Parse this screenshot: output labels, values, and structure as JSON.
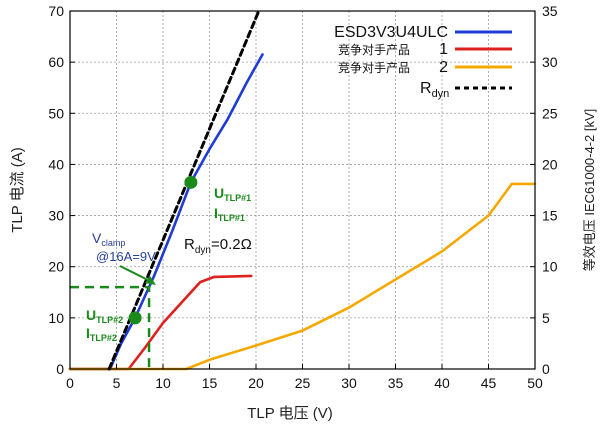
{
  "chart_data": {
    "type": "line",
    "xlabel": "TLP 电压 (V)",
    "ylabel_left": "TLP 电流 (A)",
    "ylabel_right": "等效电压 IEC61000-4-2 [kV]",
    "xlim": [
      0,
      50
    ],
    "ylim_left": [
      0,
      70
    ],
    "ylim_right": [
      0,
      35
    ],
    "x_ticks": [
      "0",
      "5",
      "10",
      "15",
      "20",
      "25",
      "30",
      "35",
      "40",
      "45",
      "50"
    ],
    "y_ticks_left": [
      "0",
      "10",
      "20",
      "30",
      "40",
      "50",
      "60",
      "70"
    ],
    "y_ticks_right": [
      "0",
      "5",
      "10",
      "15",
      "20",
      "25",
      "30",
      "35"
    ],
    "grid": true,
    "legend_position": "top-right",
    "series": [
      {
        "name": "ESD3V3U4ULC",
        "color": "#1f3bd6",
        "style": "solid",
        "points": [
          [
            0,
            0
          ],
          [
            4.3,
            0
          ],
          [
            5.5,
            5
          ],
          [
            7,
            10
          ],
          [
            9,
            18
          ],
          [
            11,
            27
          ],
          [
            13,
            36.5
          ],
          [
            15,
            43
          ],
          [
            17,
            49
          ],
          [
            19,
            56
          ],
          [
            20.7,
            61.5
          ]
        ]
      },
      {
        "name": "1",
        "label_cn": "竞争对手产品",
        "color": "#e0201d",
        "style": "solid",
        "points": [
          [
            0,
            0
          ],
          [
            6.3,
            0
          ],
          [
            8,
            4
          ],
          [
            10,
            9
          ],
          [
            12,
            13
          ],
          [
            14,
            17
          ],
          [
            15.5,
            18
          ],
          [
            19.5,
            18.2
          ]
        ]
      },
      {
        "name": "2",
        "label_cn": "竞争对手产品",
        "color": "#f5a800",
        "style": "solid",
        "points": [
          [
            0,
            0
          ],
          [
            12.5,
            0
          ],
          [
            15,
            1.8
          ],
          [
            20,
            4.6
          ],
          [
            25,
            7.5
          ],
          [
            30,
            12
          ],
          [
            35,
            17.5
          ],
          [
            40,
            23
          ],
          [
            45,
            30
          ],
          [
            47.5,
            36.2
          ],
          [
            50,
            36.2
          ]
        ]
      },
      {
        "name": "Rdyn",
        "color": "#000000",
        "style": "dashed",
        "points": [
          [
            4.2,
            0
          ],
          [
            20.3,
            70
          ]
        ]
      }
    ],
    "annotations": {
      "tlp1_main": "U",
      "tlp1_sub": "TLP#1",
      "tlp1_i_main": "I",
      "tlp1_i_sub": "TLP#1",
      "tlp2_main": "U",
      "tlp2_sub": "TLP#2",
      "tlp2_i_main": "I",
      "tlp2_i_sub": "TLP#2",
      "vclamp_main": "V",
      "vclamp_sub": "clamp",
      "vclamp_value": "@16A=9V",
      "rdyn_main": "R",
      "rdyn_sub": "dyn",
      "rdyn_value": "=0.2Ω",
      "rdyn_legend_main": "R",
      "rdyn_legend_sub": "dyn"
    },
    "markers": [
      {
        "name": "tlp1-point",
        "x": 13,
        "y": 36.5,
        "color": "#1a8a1a"
      },
      {
        "name": "tlp2-point",
        "x": 7,
        "y": 10,
        "color": "#1a8a1a"
      }
    ],
    "clamp_guide": {
      "x": 8.5,
      "y": 16,
      "color": "#1a8a1a"
    }
  }
}
